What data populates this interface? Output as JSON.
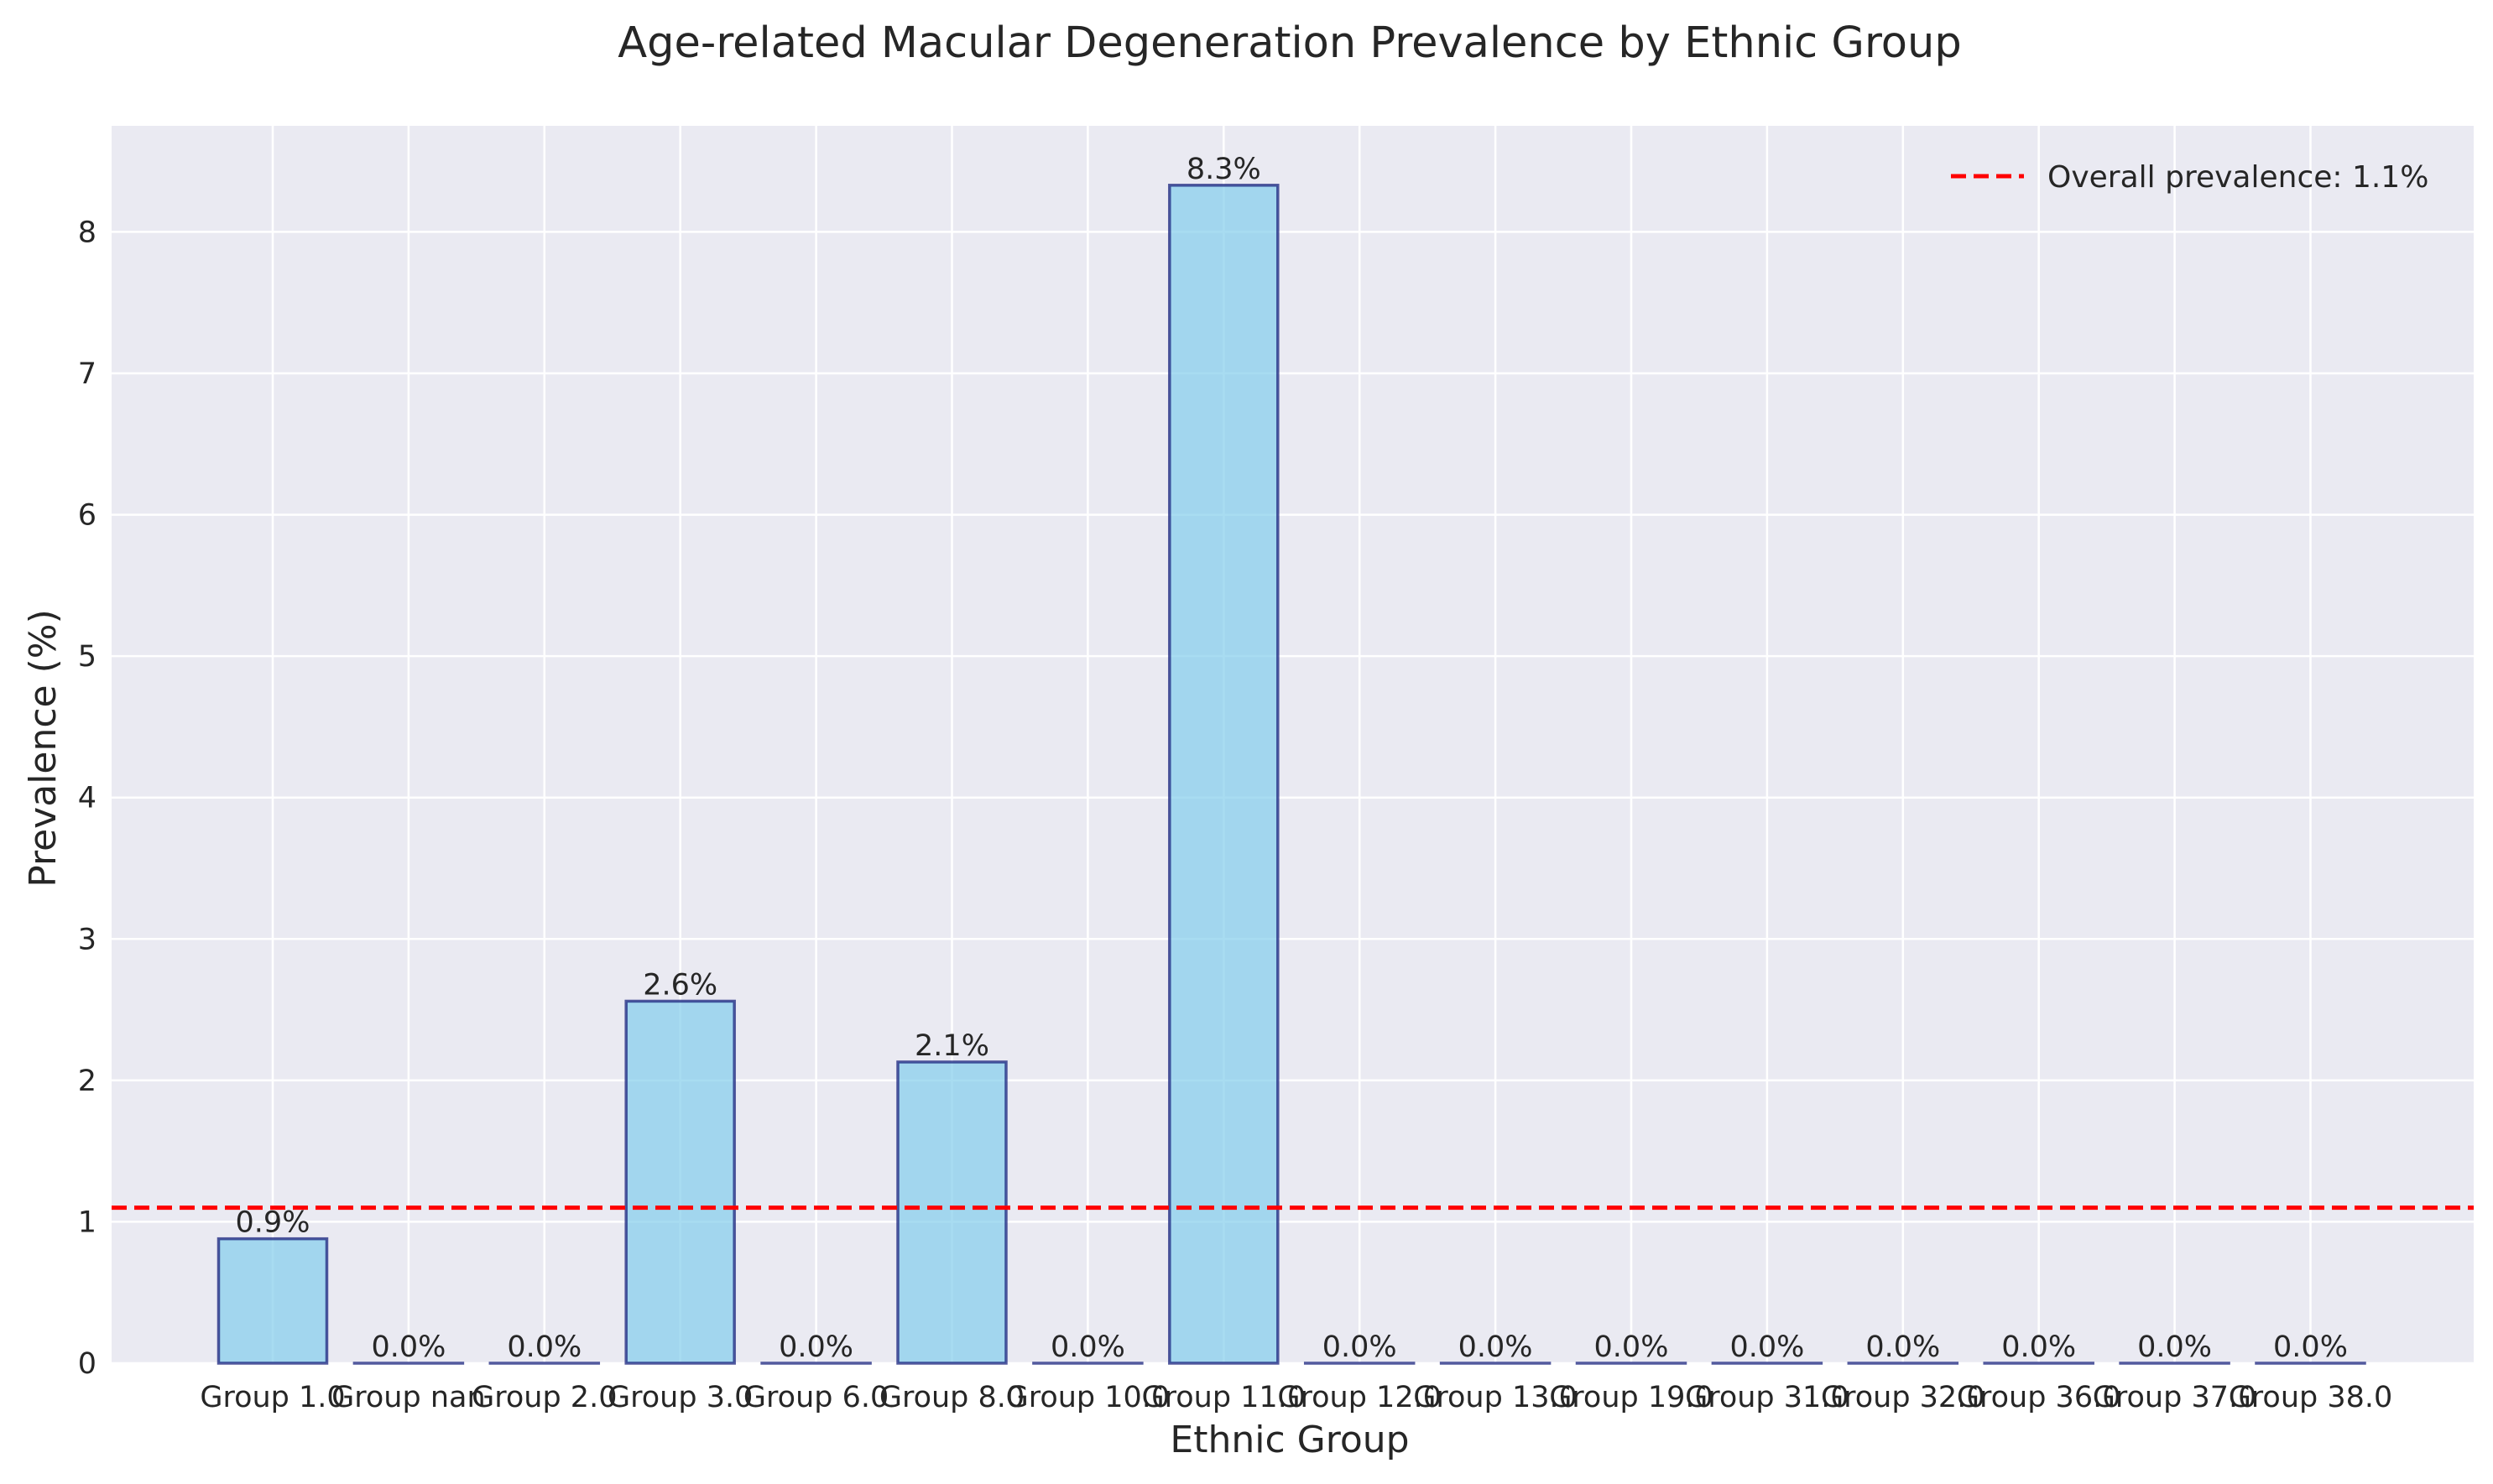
{
  "chart_data": {
    "type": "bar",
    "title": "Age-related Macular Degeneration Prevalence by Ethnic Group",
    "xlabel": "Ethnic Group",
    "ylabel": "Prevalence (%)",
    "categories": [
      "Group 1.0",
      "Group nan",
      "Group 2.0",
      "Group 3.0",
      "Group 6.0",
      "Group 8.0",
      "Group 10.0",
      "Group 11.0",
      "Group 12.0",
      "Group 13.0",
      "Group 19.0",
      "Group 31.0",
      "Group 32.0",
      "Group 36.0",
      "Group 37.0",
      "Group 38.0"
    ],
    "values": [
      0.88,
      0.0,
      0.0,
      2.56,
      0.0,
      2.13,
      0.0,
      8.33,
      0.0,
      0.0,
      0.0,
      0.0,
      0.0,
      0.0,
      0.0,
      0.0
    ],
    "data_labels": [
      "0.9%",
      "0.0%",
      "0.0%",
      "2.6%",
      "0.0%",
      "2.1%",
      "0.0%",
      "8.3%",
      "0.0%",
      "0.0%",
      "0.0%",
      "0.0%",
      "0.0%",
      "0.0%",
      "0.0%",
      "0.0%"
    ],
    "yticks": [
      0,
      1,
      2,
      3,
      4,
      5,
      6,
      7,
      8
    ],
    "ylim": [
      0,
      8.75
    ],
    "reference_line": {
      "value": 1.1,
      "label": "Overall prevalence: 1.1%",
      "style": "dashed"
    },
    "legend": {
      "position": "top-right",
      "entries": [
        "Overall prevalence: 1.1%"
      ]
    },
    "grid": true,
    "colors": {
      "bar_fill": "#87ceeb",
      "bar_edge": "#1a237e",
      "reference_line": "#ff0000",
      "plot_background": "#eaeaf2",
      "grid": "#ffffff"
    }
  }
}
